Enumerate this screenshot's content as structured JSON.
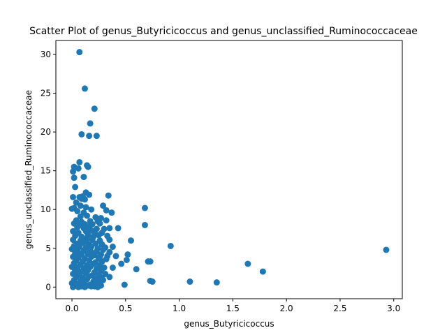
{
  "chart_data": {
    "type": "scatter",
    "title": "Scatter Plot of genus_Butyricicoccus and genus_unclassified_Ruminococcaceae",
    "xlabel": "genus_Butyricicoccus",
    "ylabel": "genus_unclassified_Ruminococcaceae",
    "xlim": [
      -0.15,
      3.08
    ],
    "ylim": [
      -1.5,
      31.8
    ],
    "xticks": [
      0.0,
      0.5,
      1.0,
      1.5,
      2.0,
      2.5,
      3.0
    ],
    "xtick_labels": [
      "0.0",
      "0.5",
      "1.0",
      "1.5",
      "2.0",
      "2.5",
      "3.0"
    ],
    "yticks": [
      0,
      5,
      10,
      15,
      20,
      25,
      30
    ],
    "ytick_labels": [
      "0",
      "5",
      "10",
      "15",
      "20",
      "25",
      "30"
    ],
    "grid": false,
    "legend": null,
    "marker_color": "#1f77b4",
    "series": [
      {
        "points": [
          [
            0.07,
            30.3
          ],
          [
            0.12,
            25.6
          ],
          [
            0.21,
            23.0
          ],
          [
            0.17,
            21.1
          ],
          [
            0.09,
            19.7
          ],
          [
            0.16,
            19.5
          ],
          [
            0.23,
            19.5
          ],
          [
            0.07,
            16.1
          ],
          [
            0.14,
            15.7
          ],
          [
            0.15,
            15.5
          ],
          [
            0.02,
            15.5
          ],
          [
            0.06,
            15.3
          ],
          [
            0.01,
            14.9
          ],
          [
            0.02,
            14.1
          ],
          [
            0.11,
            14.2
          ],
          [
            0.03,
            12.9
          ],
          [
            0.13,
            12.2
          ],
          [
            0.01,
            11.6
          ],
          [
            0.1,
            11.7
          ],
          [
            0.07,
            11.6
          ],
          [
            0.16,
            11.9
          ],
          [
            0.34,
            11.8
          ],
          [
            0.04,
            10.9
          ],
          [
            0.09,
            11.4
          ],
          [
            0.12,
            11.3
          ],
          [
            0.02,
            10.2
          ],
          [
            0.08,
            10.5
          ],
          [
            0.13,
            10.3
          ],
          [
            0.18,
            10.0
          ],
          [
            0.29,
            10.5
          ],
          [
            0.32,
            9.9
          ],
          [
            0.37,
            9.6
          ],
          [
            0.68,
            10.2
          ],
          [
            0.0,
            10.1
          ],
          [
            0.05,
            9.8
          ],
          [
            0.11,
            9.6
          ],
          [
            0.14,
            9.2
          ],
          [
            0.22,
            9.0
          ],
          [
            0.27,
            8.9
          ],
          [
            0.04,
            8.6
          ],
          [
            0.09,
            8.4
          ],
          [
            0.17,
            8.5
          ],
          [
            0.24,
            8.5
          ],
          [
            0.32,
            8.6
          ],
          [
            0.02,
            8.2
          ],
          [
            0.07,
            8.0
          ],
          [
            0.12,
            8.1
          ],
          [
            0.19,
            8.1
          ],
          [
            0.26,
            8.2
          ],
          [
            0.68,
            8.0
          ],
          [
            0.05,
            7.7
          ],
          [
            0.11,
            7.6
          ],
          [
            0.16,
            7.8
          ],
          [
            0.23,
            7.5
          ],
          [
            0.3,
            7.5
          ],
          [
            0.35,
            7.6
          ],
          [
            0.43,
            7.6
          ],
          [
            0.01,
            7.2
          ],
          [
            0.06,
            7.0
          ],
          [
            0.13,
            7.2
          ],
          [
            0.21,
            7.0
          ],
          [
            0.28,
            7.0
          ],
          [
            0.03,
            6.6
          ],
          [
            0.09,
            6.5
          ],
          [
            0.15,
            6.7
          ],
          [
            0.2,
            6.5
          ],
          [
            0.25,
            6.7
          ],
          [
            0.33,
            6.6
          ],
          [
            0.01,
            6.1
          ],
          [
            0.08,
            6.0
          ],
          [
            0.14,
            6.2
          ],
          [
            0.19,
            6.1
          ],
          [
            0.26,
            6.0
          ],
          [
            0.35,
            6.1
          ],
          [
            0.55,
            6.0
          ],
          [
            0.04,
            5.6
          ],
          [
            0.1,
            5.7
          ],
          [
            0.16,
            5.5
          ],
          [
            0.22,
            5.6
          ],
          [
            0.28,
            5.5
          ],
          [
            0.02,
            5.3
          ],
          [
            0.07,
            5.2
          ],
          [
            0.13,
            5.1
          ],
          [
            0.18,
            5.2
          ],
          [
            0.24,
            5.0
          ],
          [
            0.31,
            5.1
          ],
          [
            0.38,
            5.2
          ],
          [
            0.92,
            5.3
          ],
          [
            0.0,
            4.9
          ],
          [
            0.05,
            4.7
          ],
          [
            0.11,
            4.7
          ],
          [
            0.17,
            4.8
          ],
          [
            0.23,
            4.6
          ],
          [
            0.29,
            4.8
          ],
          [
            0.35,
            4.5
          ],
          [
            2.93,
            4.8
          ],
          [
            0.03,
            4.3
          ],
          [
            0.09,
            4.2
          ],
          [
            0.15,
            4.3
          ],
          [
            0.21,
            4.1
          ],
          [
            0.27,
            4.2
          ],
          [
            0.33,
            4.0
          ],
          [
            0.41,
            4.0
          ],
          [
            0.52,
            4.2
          ],
          [
            0.01,
            3.9
          ],
          [
            0.06,
            3.8
          ],
          [
            0.12,
            3.7
          ],
          [
            0.18,
            3.9
          ],
          [
            0.25,
            3.7
          ],
          [
            0.32,
            3.6
          ],
          [
            0.04,
            3.4
          ],
          [
            0.1,
            3.3
          ],
          [
            0.16,
            3.4
          ],
          [
            0.22,
            3.2
          ],
          [
            0.28,
            3.3
          ],
          [
            0.51,
            3.5
          ],
          [
            0.71,
            3.3
          ],
          [
            0.73,
            3.3
          ],
          [
            1.64,
            3.0
          ],
          [
            0.02,
            3.0
          ],
          [
            0.08,
            2.9
          ],
          [
            0.14,
            2.8
          ],
          [
            0.2,
            3.0
          ],
          [
            0.26,
            2.8
          ],
          [
            0.46,
            3.0
          ],
          [
            0.0,
            2.6
          ],
          [
            0.05,
            2.5
          ],
          [
            0.11,
            2.4
          ],
          [
            0.17,
            2.6
          ],
          [
            0.23,
            2.4
          ],
          [
            0.3,
            2.5
          ],
          [
            0.38,
            2.5
          ],
          [
            0.03,
            2.1
          ],
          [
            0.09,
            2.0
          ],
          [
            0.15,
            2.2
          ],
          [
            0.21,
            1.9
          ],
          [
            0.27,
            2.1
          ],
          [
            0.6,
            2.3
          ],
          [
            1.78,
            2.0
          ],
          [
            0.01,
            1.7
          ],
          [
            0.07,
            1.6
          ],
          [
            0.13,
            1.8
          ],
          [
            0.19,
            1.5
          ],
          [
            0.25,
            1.6
          ],
          [
            0.31,
            1.7
          ],
          [
            0.04,
            1.3
          ],
          [
            0.1,
            1.2
          ],
          [
            0.16,
            1.4
          ],
          [
            0.22,
            1.1
          ],
          [
            0.28,
            1.2
          ],
          [
            0.35,
            1.3
          ],
          [
            0.02,
            0.9
          ],
          [
            0.08,
            0.8
          ],
          [
            0.14,
            1.0
          ],
          [
            0.2,
            0.7
          ],
          [
            0.26,
            0.9
          ],
          [
            0.29,
            0.9
          ],
          [
            0.73,
            0.8
          ],
          [
            0.75,
            0.7
          ],
          [
            1.1,
            0.7
          ],
          [
            1.35,
            0.6
          ],
          [
            0.0,
            0.5
          ],
          [
            0.05,
            0.4
          ],
          [
            0.11,
            0.6
          ],
          [
            0.17,
            0.3
          ],
          [
            0.23,
            0.5
          ],
          [
            0.03,
            0.2
          ],
          [
            0.09,
            0.1
          ],
          [
            0.15,
            0.2
          ],
          [
            0.21,
            0.1
          ],
          [
            0.27,
            0.2
          ],
          [
            0.49,
            0.3
          ],
          [
            0.01,
            0.0
          ],
          [
            0.06,
            0.0
          ],
          [
            0.12,
            0.0
          ],
          [
            0.18,
            0.1
          ],
          [
            0.24,
            0.0
          ],
          [
            0.02,
            3.1
          ],
          [
            0.06,
            4.4
          ],
          [
            0.1,
            6.3
          ],
          [
            0.14,
            2.2
          ],
          [
            0.18,
            7.3
          ],
          [
            0.08,
            9.1
          ],
          [
            0.12,
            5.9
          ],
          [
            0.04,
            1.9
          ],
          [
            0.19,
            4.4
          ],
          [
            0.26,
            3.9
          ]
        ]
      }
    ]
  }
}
